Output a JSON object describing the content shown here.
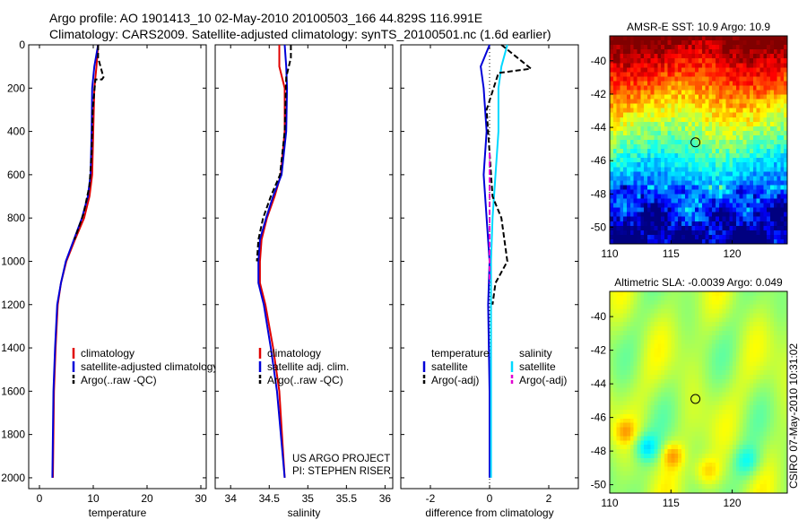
{
  "header": {
    "title_line1": "Argo profile: AO 1901413_10 02-May-2010 20100503_166 44.829S 116.991E",
    "title_line2": "Climatology: CARS2009. Satellite-adjusted climatology: synTS_20100501.nc (1.6d earlier)"
  },
  "colors": {
    "climatology": "#e00000",
    "satellite": "#0000d8",
    "argo": "#000000",
    "salinity_satellite": "#00d8ff",
    "salinity_argo": "#e000d0"
  },
  "side_label": "CSIRO 07-May-2010 10:31:02",
  "chart_data": [
    {
      "type": "line",
      "name": "temperature-profile",
      "xlabel": "temperature",
      "xlim": [
        -2,
        31
      ],
      "ylim": [
        2050,
        0
      ],
      "xticks": [
        0,
        10,
        20,
        30
      ],
      "xtick_labels": [
        "0",
        "10",
        "20",
        "30"
      ],
      "yticks": [
        0,
        200,
        400,
        600,
        800,
        1000,
        1200,
        1400,
        1600,
        1800,
        2000
      ],
      "ytick_labels": [
        "0",
        "200",
        "400",
        "600",
        "800",
        "1000",
        "1200",
        "1400",
        "1600",
        "1800",
        "2000"
      ],
      "legend": [
        "climatology",
        "satellite-adjusted climatology",
        "Argo(..raw -QC)"
      ],
      "series": [
        {
          "name": "climatology",
          "color": "#e00000",
          "dash": "",
          "x": [
            10.9,
            10.6,
            10.2,
            10.0,
            9.8,
            9.3,
            8.3,
            6.6,
            5.0,
            4.0,
            3.4,
            3.0,
            2.7,
            2.5
          ],
          "y": [
            0,
            100,
            200,
            400,
            600,
            700,
            800,
            900,
            1000,
            1100,
            1200,
            1400,
            1600,
            2000
          ]
        },
        {
          "name": "satellite-adjusted climatology",
          "color": "#0000d8",
          "dash": "",
          "x": [
            10.9,
            10.2,
            9.8,
            9.7,
            9.5,
            9.0,
            7.9,
            6.4,
            4.9,
            4.0,
            3.3,
            2.9,
            2.6,
            2.4
          ],
          "y": [
            0,
            100,
            200,
            400,
            600,
            700,
            800,
            900,
            1000,
            1100,
            1200,
            1400,
            1600,
            2000
          ]
        },
        {
          "name": "Argo(..raw -QC)",
          "color": "#000000",
          "dash": "6,3",
          "x": [
            10.9,
            10.9,
            11.9,
            11.6,
            10.4,
            9.9,
            9.7,
            9.3,
            8.2,
            6.5
          ],
          "y": [
            0,
            60,
            150,
            160,
            160,
            300,
            500,
            650,
            780,
            900
          ]
        }
      ]
    },
    {
      "type": "line",
      "name": "salinity-profile",
      "xlabel": "salinity",
      "xlim": [
        33.8,
        36.1
      ],
      "ylim": [
        2050,
        0
      ],
      "xticks": [
        34,
        34.5,
        35,
        35.5,
        36
      ],
      "xtick_labels": [
        "34",
        "34.5",
        "35",
        "35.5",
        "36"
      ],
      "legend": [
        "climatology",
        "satellite adj. clim.",
        "Argo(..raw -QC)"
      ],
      "series": [
        {
          "name": "climatology",
          "color": "#e00000",
          "dash": "",
          "x": [
            34.63,
            34.63,
            34.7,
            34.7,
            34.65,
            34.57,
            34.47,
            34.4,
            34.38,
            34.38,
            34.45,
            34.55,
            34.63,
            34.7
          ],
          "y": [
            0,
            100,
            200,
            400,
            600,
            700,
            800,
            900,
            1000,
            1100,
            1200,
            1400,
            1600,
            2000
          ]
        },
        {
          "name": "satellite adj. clim.",
          "color": "#0000d8",
          "dash": "",
          "x": [
            34.7,
            34.72,
            34.73,
            34.72,
            34.66,
            34.55,
            34.46,
            34.38,
            34.36,
            34.36,
            34.43,
            34.52,
            34.6,
            34.7
          ],
          "y": [
            0,
            100,
            200,
            400,
            600,
            700,
            800,
            900,
            1000,
            1100,
            1200,
            1400,
            1600,
            2000
          ]
        },
        {
          "name": "Argo(..raw -QC)",
          "color": "#000000",
          "dash": "6,3",
          "x": [
            34.78,
            34.78,
            34.72,
            34.7,
            34.64,
            34.52,
            34.42,
            34.36,
            34.34
          ],
          "y": [
            0,
            60,
            150,
            400,
            600,
            700,
            800,
            900,
            1000
          ]
        }
      ],
      "annotation": [
        "US ARGO PROJECT",
        "PI: STEPHEN RISER"
      ]
    },
    {
      "type": "line",
      "name": "difference-profile",
      "xlabel": "difference from climatology",
      "xlim": [
        -3,
        3
      ],
      "ylim": [
        2050,
        0
      ],
      "xticks": [
        -2,
        0,
        2
      ],
      "xtick_labels": [
        "-2",
        "0",
        "2"
      ],
      "legend_groups": [
        {
          "heading": "temperature",
          "items": [
            "satellite",
            "Argo(-adj)"
          ]
        },
        {
          "heading": "salinity",
          "items": [
            "satellite",
            "Argo(-adj)"
          ]
        }
      ],
      "series": [
        {
          "name": "temperature satellite",
          "color": "#0000d8",
          "dash": "",
          "x": [
            0.0,
            -0.3,
            -0.2,
            -0.1,
            -0.2,
            -0.1,
            0.0,
            -0.05,
            0.0,
            0.0
          ],
          "y": [
            0,
            100,
            200,
            400,
            600,
            800,
            1000,
            1200,
            1600,
            2000
          ]
        },
        {
          "name": "salinity satellite",
          "color": "#00d8ff",
          "dash": "",
          "x": [
            0.6,
            0.4,
            0.3,
            0.3,
            0.2,
            0.1,
            0.05,
            0.05,
            0.05,
            0.05
          ],
          "y": [
            0,
            100,
            200,
            400,
            600,
            800,
            1000,
            1200,
            1600,
            2000
          ]
        },
        {
          "name": "temperature Argo(-adj)",
          "color": "#000000",
          "dash": "6,3",
          "x": [
            0.4,
            1.4,
            0.3,
            -0.1,
            0.1,
            0.4,
            0.6,
            0.2,
            0.1
          ],
          "y": [
            0,
            110,
            130,
            300,
            700,
            800,
            1000,
            1100,
            1200
          ]
        },
        {
          "name": "salinity Argo(-adj)",
          "color": "#e000d0",
          "dash": "6,3",
          "x": [
            0.0,
            0.0,
            0.0,
            0.0,
            0.0,
            0.0
          ],
          "y": [
            500,
            700,
            800,
            900,
            1000,
            1100
          ]
        }
      ]
    },
    {
      "type": "heatmap",
      "name": "sst-map",
      "title": "AMSR-E SST: 10.9 Argo: 10.9",
      "xlim": [
        110,
        124.5
      ],
      "ylim": [
        -51,
        -38.5
      ],
      "xticks": [
        110,
        115,
        120
      ],
      "xtick_labels": [
        "110",
        "115",
        "120"
      ],
      "yticks": [
        -40,
        -42,
        -44,
        -46,
        -48,
        -50
      ],
      "ytick_labels": [
        "-40",
        "-42",
        "-44",
        "-46",
        "-48",
        "-50"
      ],
      "marker": {
        "lon": 117.0,
        "lat": -44.9
      }
    },
    {
      "type": "heatmap",
      "name": "sla-map",
      "title": "Altimetric SLA: -0.0039 Argo: 0.049",
      "xlim": [
        110,
        124.5
      ],
      "ylim": [
        -50.5,
        -38.5
      ],
      "xticks": [
        110,
        115,
        120
      ],
      "xtick_labels": [
        "110",
        "115",
        "120"
      ],
      "yticks": [
        -40,
        -42,
        -44,
        -46,
        -48,
        -50
      ],
      "ytick_labels": [
        "-40",
        "-42",
        "-44",
        "-46",
        "-48",
        "-50"
      ],
      "marker": {
        "lon": 117.0,
        "lat": -44.9
      }
    }
  ]
}
